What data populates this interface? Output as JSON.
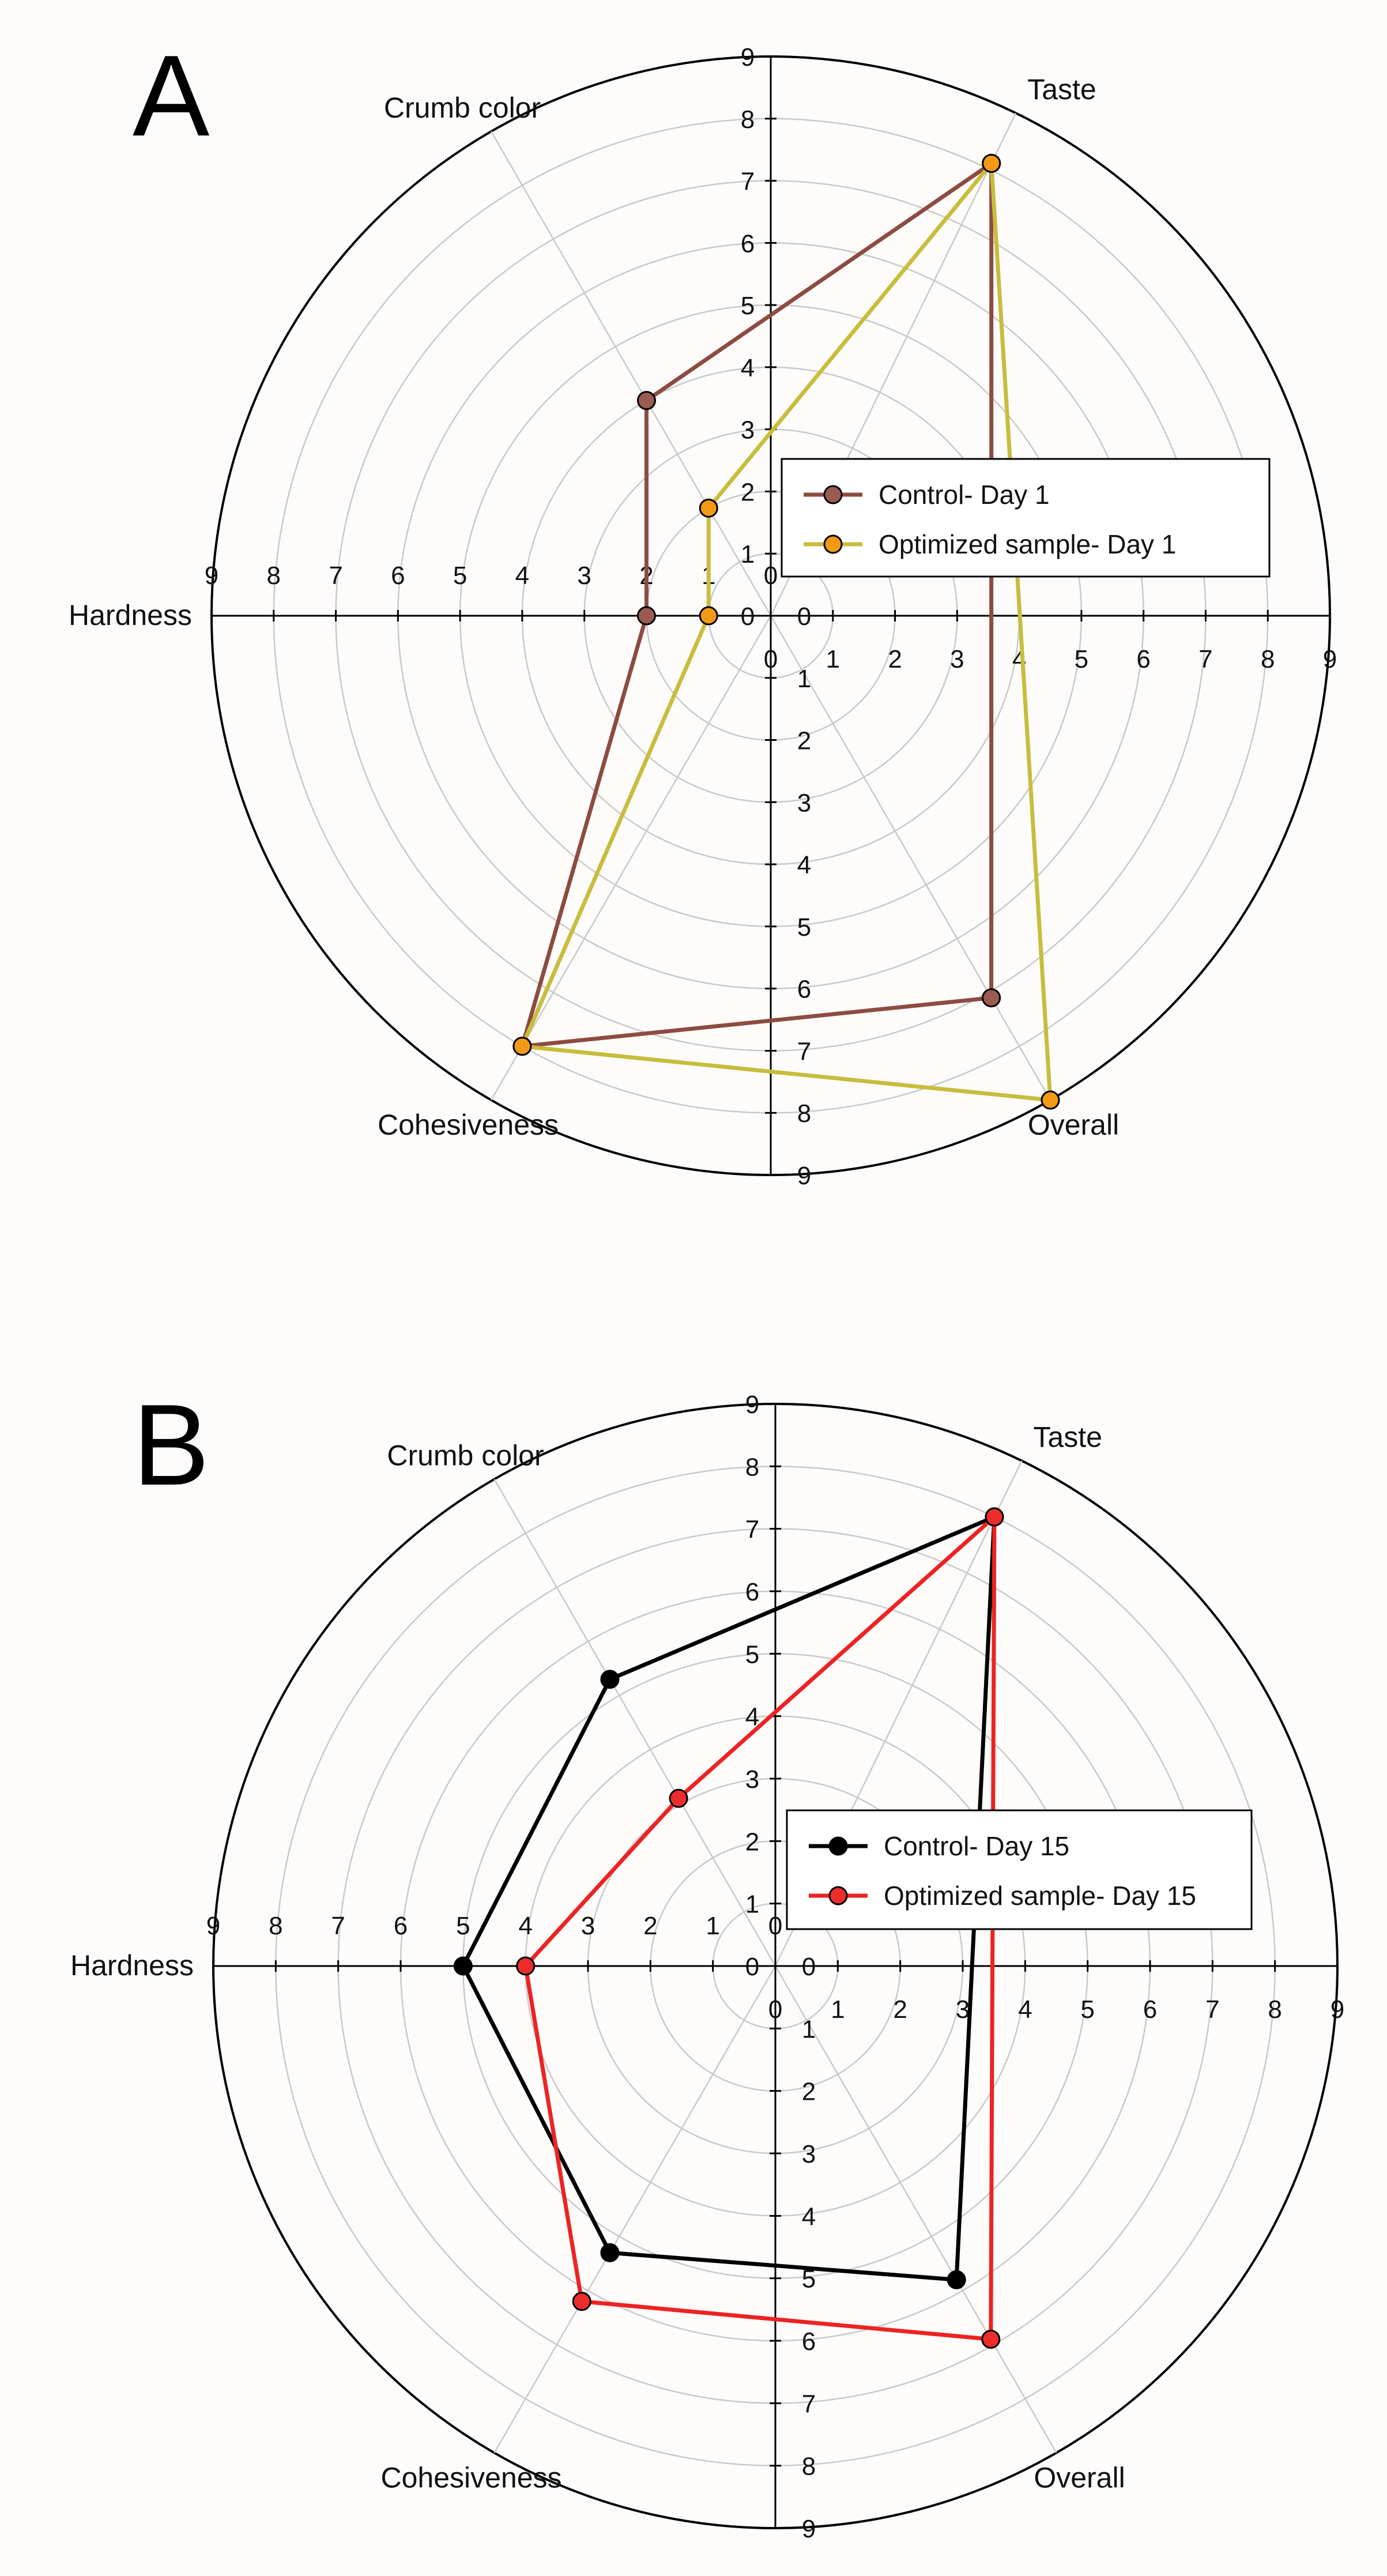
{
  "chart_data": [
    {
      "panel": "A",
      "type": "radar",
      "axes": [
        "Taste",
        "Crumb color",
        "Hardness",
        "Cohesiveness",
        "Overall"
      ],
      "scale": {
        "min": 0,
        "max": 9,
        "step": 1
      },
      "rings": [
        1,
        2,
        3,
        4,
        5,
        6,
        7,
        8,
        9
      ],
      "ticks": [
        "0",
        "1",
        "2",
        "3",
        "4",
        "5",
        "6",
        "7",
        "8",
        "9"
      ],
      "series": [
        {
          "name": "Control- Day 1",
          "line_color": "#8e4b41",
          "marker_color": "#9a5b50",
          "values": {
            "Taste": 8.1,
            "Crumb color": 4.0,
            "Hardness": 2.0,
            "Cohesiveness": 8.0,
            "Overall": 7.1
          }
        },
        {
          "name": "Optimized sample- Day 1",
          "line_color": "#c8bd3c",
          "marker_color": "#f29a16",
          "values": {
            "Taste": 8.1,
            "Crumb color": 2.0,
            "Hardness": 1.0,
            "Cohesiveness": 8.0,
            "Overall": 9.0
          }
        }
      ]
    },
    {
      "panel": "B",
      "type": "radar",
      "axes": [
        "Taste",
        "Crumb color",
        "Hardness",
        "Cohesiveness",
        "Overall"
      ],
      "scale": {
        "min": 0,
        "max": 9,
        "step": 1
      },
      "rings": [
        1,
        2,
        3,
        4,
        5,
        6,
        7,
        8,
        9
      ],
      "ticks": [
        "0",
        "1",
        "2",
        "3",
        "4",
        "5",
        "6",
        "7",
        "8",
        "9"
      ],
      "series": [
        {
          "name": "Control- Day 15",
          "line_color": "#000000",
          "marker_color": "#000000",
          "values": {
            "Taste": 8.0,
            "Crumb color": 5.3,
            "Hardness": 5.0,
            "Cohesiveness": 5.3,
            "Overall": 5.8
          }
        },
        {
          "name": "Optimized sample- Day 15",
          "line_color": "#ee2222",
          "marker_color": "#ee2c2c",
          "values": {
            "Taste": 8.0,
            "Crumb color": 3.1,
            "Hardness": 4.0,
            "Cohesiveness": 6.2,
            "Overall": 6.9
          }
        }
      ]
    }
  ]
}
